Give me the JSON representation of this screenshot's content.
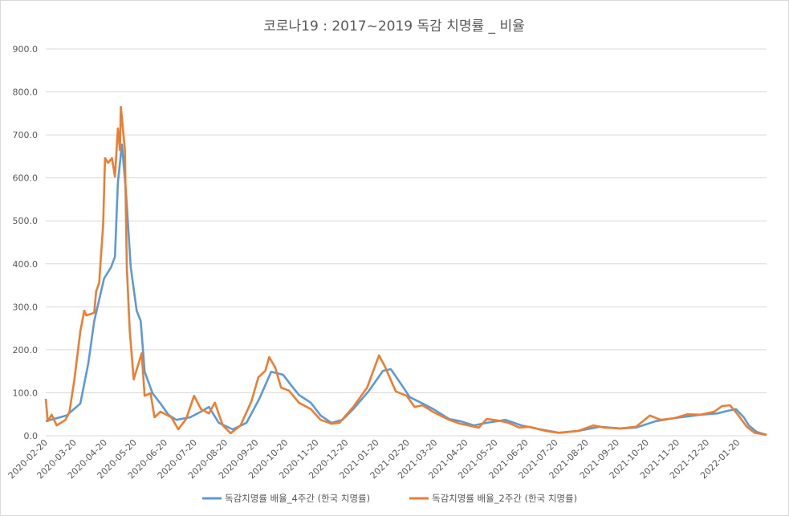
{
  "chart_data": {
    "type": "line",
    "title": "코로나19 : 2017~2019 독감 치명률 _ 비율",
    "xlabel": "",
    "ylabel": "",
    "ylim": [
      0,
      900
    ],
    "yticks": [
      "0.0",
      "100.0",
      "200.0",
      "300.0",
      "400.0",
      "500.0",
      "600.0",
      "700.0",
      "800.0",
      "900.0"
    ],
    "xticks": [
      "2020-02-20",
      "2020-03-20",
      "2020-04-20",
      "2020-05-20",
      "2020-06-20",
      "2020-07-20",
      "2020-08-20",
      "2020-09-20",
      "2020-10-20",
      "2020-11-20",
      "2020-12-20",
      "2021-01-20",
      "2021-02-20",
      "2021-03-20",
      "2021-04-20",
      "2021-05-20",
      "2021-06-20",
      "2021-07-20",
      "2021-08-20",
      "2021-09-20",
      "2021-10-20",
      "2021-11-20",
      "2021-12-20",
      "2022-01-20"
    ],
    "grid": true,
    "legend_position": "bottom",
    "series": [
      {
        "name": "독감치명률 배율_4주간 (한국 치명률)",
        "color": "#5B9BD5",
        "points": [
          [
            "2020-02-20",
            34
          ],
          [
            "2020-03-12",
            47
          ],
          [
            "2020-03-26",
            75
          ],
          [
            "2020-04-03",
            168
          ],
          [
            "2020-04-09",
            267
          ],
          [
            "2020-04-19",
            366
          ],
          [
            "2020-04-26",
            392
          ],
          [
            "2020-04-30",
            416
          ],
          [
            "2020-05-03",
            590
          ],
          [
            "2020-05-07",
            678
          ],
          [
            "2020-05-11",
            571
          ],
          [
            "2020-05-16",
            392
          ],
          [
            "2020-05-22",
            291
          ],
          [
            "2020-05-26",
            267
          ],
          [
            "2020-05-30",
            149
          ],
          [
            "2020-06-07",
            99
          ],
          [
            "2020-06-15",
            75
          ],
          [
            "2020-06-23",
            49
          ],
          [
            "2020-07-01",
            37
          ],
          [
            "2020-07-15",
            43
          ],
          [
            "2020-07-26",
            56
          ],
          [
            "2020-08-03",
            67
          ],
          [
            "2020-08-13",
            30
          ],
          [
            "2020-08-27",
            15
          ],
          [
            "2020-09-10",
            30
          ],
          [
            "2020-09-23",
            86
          ],
          [
            "2020-10-05",
            149
          ],
          [
            "2020-10-17",
            142
          ],
          [
            "2020-10-25",
            118
          ],
          [
            "2020-11-02",
            95
          ],
          [
            "2020-11-14",
            77
          ],
          [
            "2020-11-24",
            47
          ],
          [
            "2020-12-05",
            30
          ],
          [
            "2020-12-16",
            37
          ],
          [
            "2020-12-27",
            62
          ],
          [
            "2021-01-12",
            105
          ],
          [
            "2021-01-26",
            151
          ],
          [
            "2021-02-03",
            155
          ],
          [
            "2021-02-14",
            118
          ],
          [
            "2021-02-22",
            90
          ],
          [
            "2021-03-07",
            75
          ],
          [
            "2021-03-18",
            62
          ],
          [
            "2021-04-03",
            39
          ],
          [
            "2021-04-14",
            34
          ],
          [
            "2021-04-28",
            24
          ],
          [
            "2021-05-11",
            30
          ],
          [
            "2021-05-30",
            37
          ],
          [
            "2021-06-15",
            24
          ],
          [
            "2021-07-04",
            15
          ],
          [
            "2021-07-23",
            7
          ],
          [
            "2021-08-11",
            11
          ],
          [
            "2021-09-02",
            21
          ],
          [
            "2021-09-23",
            17
          ],
          [
            "2021-10-09",
            19
          ],
          [
            "2021-10-29",
            34
          ],
          [
            "2021-11-17",
            41
          ],
          [
            "2021-11-30",
            45
          ],
          [
            "2021-12-13",
            49
          ],
          [
            "2021-12-30",
            52
          ],
          [
            "2022-01-10",
            58
          ],
          [
            "2022-01-18",
            62
          ],
          [
            "2022-01-26",
            43
          ],
          [
            "2022-01-31",
            24
          ],
          [
            "2022-02-08",
            9
          ],
          [
            "2022-02-18",
            2
          ]
        ]
      },
      {
        "name": "독감치명률 배율_2주간 (한국 치명률)",
        "color": "#ED7D31",
        "points": [
          [
            "2020-02-20",
            86
          ],
          [
            "2020-02-22",
            34
          ],
          [
            "2020-02-26",
            49
          ],
          [
            "2020-03-02",
            24
          ],
          [
            "2020-03-11",
            37
          ],
          [
            "2020-03-15",
            56
          ],
          [
            "2020-03-20",
            131
          ],
          [
            "2020-03-26",
            243
          ],
          [
            "2020-03-30",
            291
          ],
          [
            "2020-04-01",
            280
          ],
          [
            "2020-04-09",
            286
          ],
          [
            "2020-04-11",
            336
          ],
          [
            "2020-04-14",
            355
          ],
          [
            "2020-04-18",
            491
          ],
          [
            "2020-04-20",
            646
          ],
          [
            "2020-04-23",
            635
          ],
          [
            "2020-04-27",
            646
          ],
          [
            "2020-04-30",
            603
          ],
          [
            "2020-05-03",
            715
          ],
          [
            "2020-05-05",
            665
          ],
          [
            "2020-05-06",
            765
          ],
          [
            "2020-05-10",
            665
          ],
          [
            "2020-05-12",
            392
          ],
          [
            "2020-05-15",
            243
          ],
          [
            "2020-05-19",
            131
          ],
          [
            "2020-05-27",
            192
          ],
          [
            "2020-05-30",
            93
          ],
          [
            "2020-06-05",
            99
          ],
          [
            "2020-06-09",
            43
          ],
          [
            "2020-06-15",
            56
          ],
          [
            "2020-06-26",
            43
          ],
          [
            "2020-07-03",
            15
          ],
          [
            "2020-07-11",
            39
          ],
          [
            "2020-07-19",
            93
          ],
          [
            "2020-07-23",
            75
          ],
          [
            "2020-07-26",
            62
          ],
          [
            "2020-08-03",
            52
          ],
          [
            "2020-08-09",
            77
          ],
          [
            "2020-08-17",
            24
          ],
          [
            "2020-08-25",
            6
          ],
          [
            "2020-09-04",
            24
          ],
          [
            "2020-09-15",
            80
          ],
          [
            "2020-09-22",
            136
          ],
          [
            "2020-09-29",
            151
          ],
          [
            "2020-10-03",
            183
          ],
          [
            "2020-10-09",
            159
          ],
          [
            "2020-10-15",
            112
          ],
          [
            "2020-10-23",
            105
          ],
          [
            "2020-11-02",
            77
          ],
          [
            "2020-11-14",
            62
          ],
          [
            "2020-11-24",
            37
          ],
          [
            "2020-12-05",
            28
          ],
          [
            "2020-12-13",
            30
          ],
          [
            "2020-12-27",
            67
          ],
          [
            "2021-01-10",
            112
          ],
          [
            "2021-01-22",
            187
          ],
          [
            "2021-01-28",
            161
          ],
          [
            "2021-02-08",
            103
          ],
          [
            "2021-02-19",
            93
          ],
          [
            "2021-02-27",
            67
          ],
          [
            "2021-03-07",
            71
          ],
          [
            "2021-03-18",
            55
          ],
          [
            "2021-04-03",
            37
          ],
          [
            "2021-04-14",
            28
          ],
          [
            "2021-05-03",
            19
          ],
          [
            "2021-05-11",
            39
          ],
          [
            "2021-05-24",
            35
          ],
          [
            "2021-06-02",
            30
          ],
          [
            "2021-06-13",
            19
          ],
          [
            "2021-06-23",
            21
          ],
          [
            "2021-07-10",
            11
          ],
          [
            "2021-07-23",
            7
          ],
          [
            "2021-08-11",
            11
          ],
          [
            "2021-08-27",
            24
          ],
          [
            "2021-09-07",
            19
          ],
          [
            "2021-09-23",
            17
          ],
          [
            "2021-10-09",
            21
          ],
          [
            "2021-10-23",
            47
          ],
          [
            "2021-11-03",
            37
          ],
          [
            "2021-11-17",
            41
          ],
          [
            "2021-11-30",
            50
          ],
          [
            "2021-12-13",
            49
          ],
          [
            "2021-12-27",
            56
          ],
          [
            "2022-01-04",
            69
          ],
          [
            "2022-01-12",
            71
          ],
          [
            "2022-01-20",
            49
          ],
          [
            "2022-01-29",
            21
          ],
          [
            "2022-02-06",
            7
          ],
          [
            "2022-02-18",
            2
          ]
        ]
      }
    ]
  }
}
